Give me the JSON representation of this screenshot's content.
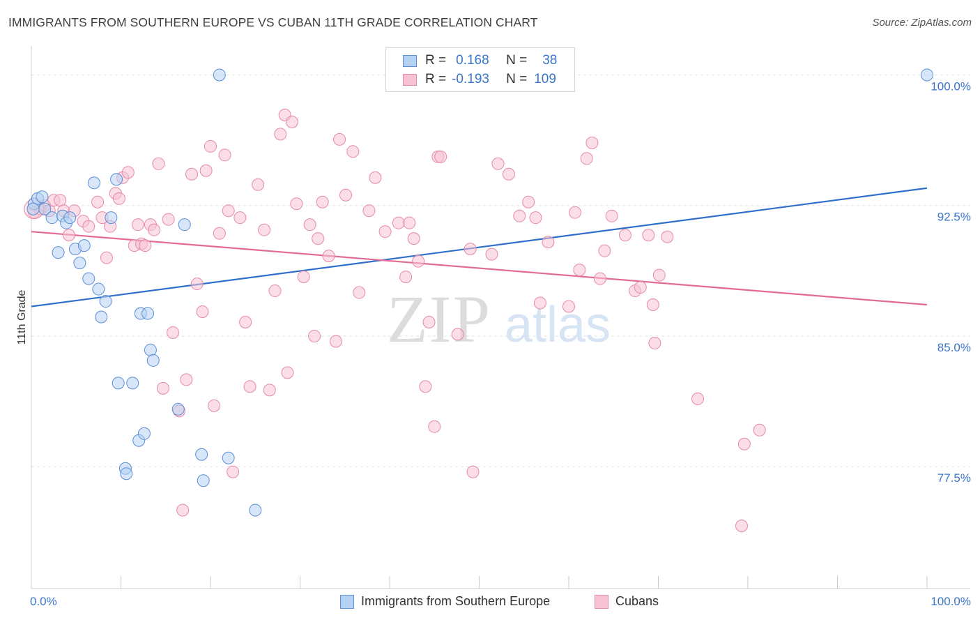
{
  "title": "IMMIGRANTS FROM SOUTHERN EUROPE VS CUBAN 11TH GRADE CORRELATION CHART",
  "source": "Source: ZipAtlas.com",
  "watermark": {
    "zip": "ZIP",
    "atlas": "atlas"
  },
  "colors": {
    "blue": "#5b8fd6",
    "blue_fill": "#b7d1f2",
    "blue_line": "#2f6fcc",
    "pink": "#e58aa8",
    "pink_fill": "#f7c3d3",
    "pink_line": "#e36a93",
    "axis_text": "#3a76c9"
  },
  "legend": {
    "r_label": "R =",
    "n_label": "N =",
    "series1": {
      "r": "0.168",
      "n": "38"
    },
    "series2": {
      "r": "-0.193",
      "n": "109"
    }
  },
  "bottom_legend": {
    "series1": "Immigrants from Southern Europe",
    "series2": "Cubans"
  },
  "chart_data": {
    "type": "scatter",
    "title": "IMMIGRANTS FROM SOUTHERN EUROPE VS CUBAN 11TH GRADE CORRELATION CHART",
    "xlabel": "",
    "ylabel": "11th Grade",
    "xlim": [
      0,
      100
    ],
    "ylim": [
      70.5,
      101.5
    ],
    "x_tick_labels": [
      "0.0%",
      "100.0%"
    ],
    "y_ticks": [
      77.5,
      85.0,
      92.5,
      100.0
    ],
    "y_tick_labels": [
      "77.5%",
      "85.0%",
      "92.5%",
      "100.0%"
    ],
    "series": [
      {
        "name": "Immigrants from Southern Europe",
        "color": "#5b8fd6",
        "trend": {
          "x": [
            0,
            100
          ],
          "y": [
            86.7,
            93.5
          ]
        },
        "points": [
          [
            0.3,
            92.6
          ],
          [
            0.7,
            92.9
          ],
          [
            1.2,
            93.0
          ],
          [
            1.5,
            92.3
          ],
          [
            2.3,
            91.8
          ],
          [
            3.0,
            89.8
          ],
          [
            3.5,
            91.9
          ],
          [
            3.9,
            91.5
          ],
          [
            4.3,
            91.8
          ],
          [
            4.9,
            90.0
          ],
          [
            5.4,
            89.2
          ],
          [
            5.9,
            90.2
          ],
          [
            6.4,
            88.3
          ],
          [
            7.0,
            93.8
          ],
          [
            7.5,
            87.7
          ],
          [
            7.8,
            86.1
          ],
          [
            8.3,
            87.0
          ],
          [
            8.9,
            91.8
          ],
          [
            9.5,
            94.0
          ],
          [
            9.7,
            82.3
          ],
          [
            10.5,
            77.4
          ],
          [
            10.6,
            77.1
          ],
          [
            11.3,
            82.3
          ],
          [
            12.0,
            79.0
          ],
          [
            12.2,
            86.3
          ],
          [
            12.6,
            79.4
          ],
          [
            13.0,
            86.3
          ],
          [
            13.3,
            84.2
          ],
          [
            13.6,
            83.6
          ],
          [
            16.4,
            80.8
          ],
          [
            17.1,
            91.4
          ],
          [
            19.0,
            78.2
          ],
          [
            19.2,
            76.7
          ],
          [
            21.0,
            100.0
          ],
          [
            22.0,
            78.0
          ],
          [
            25.0,
            75.0
          ],
          [
            100.0,
            100.0
          ],
          [
            0.2,
            92.3
          ]
        ]
      },
      {
        "name": "Cubans",
        "color": "#e58aa8",
        "trend": {
          "x": [
            0,
            100
          ],
          "y": [
            91.0,
            86.8
          ]
        },
        "points": [
          [
            0.3,
            92.1
          ],
          [
            1.0,
            92.3
          ],
          [
            1.5,
            92.5
          ],
          [
            2.0,
            92.2
          ],
          [
            2.5,
            92.8
          ],
          [
            3.2,
            92.8
          ],
          [
            3.6,
            92.2
          ],
          [
            4.2,
            90.8
          ],
          [
            4.8,
            92.2
          ],
          [
            5.8,
            91.6
          ],
          [
            6.4,
            91.3
          ],
          [
            7.4,
            92.7
          ],
          [
            7.9,
            91.8
          ],
          [
            8.4,
            89.5
          ],
          [
            8.8,
            91.3
          ],
          [
            9.4,
            93.2
          ],
          [
            9.8,
            92.9
          ],
          [
            10.2,
            94.1
          ],
          [
            10.8,
            94.4
          ],
          [
            11.5,
            90.2
          ],
          [
            11.9,
            91.4
          ],
          [
            12.3,
            90.3
          ],
          [
            12.7,
            90.2
          ],
          [
            13.3,
            91.4
          ],
          [
            13.7,
            91.1
          ],
          [
            14.2,
            94.9
          ],
          [
            14.7,
            82.0
          ],
          [
            15.3,
            91.7
          ],
          [
            15.8,
            85.2
          ],
          [
            16.5,
            80.7
          ],
          [
            16.9,
            75.0
          ],
          [
            17.3,
            82.5
          ],
          [
            17.9,
            94.3
          ],
          [
            18.5,
            88.0
          ],
          [
            19.1,
            86.4
          ],
          [
            19.5,
            94.5
          ],
          [
            20.0,
            95.9
          ],
          [
            20.4,
            81.0
          ],
          [
            21.0,
            90.9
          ],
          [
            21.6,
            95.4
          ],
          [
            22.0,
            92.2
          ],
          [
            22.5,
            77.2
          ],
          [
            23.3,
            91.8
          ],
          [
            23.9,
            85.8
          ],
          [
            24.4,
            82.1
          ],
          [
            25.3,
            93.7
          ],
          [
            26.0,
            91.1
          ],
          [
            26.6,
            81.9
          ],
          [
            27.2,
            87.6
          ],
          [
            27.8,
            96.6
          ],
          [
            28.3,
            97.7
          ],
          [
            28.6,
            82.9
          ],
          [
            29.1,
            97.3
          ],
          [
            29.6,
            92.6
          ],
          [
            30.4,
            88.4
          ],
          [
            31.1,
            91.4
          ],
          [
            31.6,
            85.0
          ],
          [
            32.0,
            90.6
          ],
          [
            32.5,
            92.7
          ],
          [
            33.2,
            89.6
          ],
          [
            34.0,
            84.7
          ],
          [
            34.4,
            96.3
          ],
          [
            35.1,
            93.1
          ],
          [
            35.9,
            95.6
          ],
          [
            36.6,
            87.5
          ],
          [
            37.7,
            92.2
          ],
          [
            39.5,
            91.0
          ],
          [
            41.0,
            91.5
          ],
          [
            41.8,
            88.4
          ],
          [
            42.2,
            91.5
          ],
          [
            42.7,
            90.6
          ],
          [
            43.2,
            89.3
          ],
          [
            44.0,
            82.1
          ],
          [
            44.4,
            85.8
          ],
          [
            45.0,
            79.8
          ],
          [
            45.4,
            95.3
          ],
          [
            47.6,
            85.1
          ],
          [
            49.0,
            90.0
          ],
          [
            49.3,
            77.2
          ],
          [
            51.4,
            89.7
          ],
          [
            52.1,
            94.9
          ],
          [
            53.3,
            94.3
          ],
          [
            54.5,
            91.9
          ],
          [
            55.5,
            92.7
          ],
          [
            56.3,
            91.8
          ],
          [
            56.8,
            86.9
          ],
          [
            57.7,
            90.4
          ],
          [
            60.0,
            86.7
          ],
          [
            61.2,
            88.8
          ],
          [
            62.0,
            95.2
          ],
          [
            62.6,
            96.1
          ],
          [
            63.5,
            88.3
          ],
          [
            64.0,
            89.9
          ],
          [
            64.8,
            91.9
          ],
          [
            67.4,
            87.6
          ],
          [
            68.0,
            87.8
          ],
          [
            68.9,
            90.8
          ],
          [
            69.4,
            86.8
          ],
          [
            69.6,
            84.6
          ],
          [
            70.1,
            88.5
          ],
          [
            71.0,
            90.7
          ],
          [
            74.4,
            81.4
          ],
          [
            79.6,
            78.8
          ],
          [
            79.3,
            74.1
          ],
          [
            81.3,
            79.6
          ],
          [
            66.3,
            90.8
          ],
          [
            60.7,
            92.1
          ],
          [
            45.7,
            95.3
          ],
          [
            38.4,
            94.1
          ]
        ]
      }
    ]
  }
}
